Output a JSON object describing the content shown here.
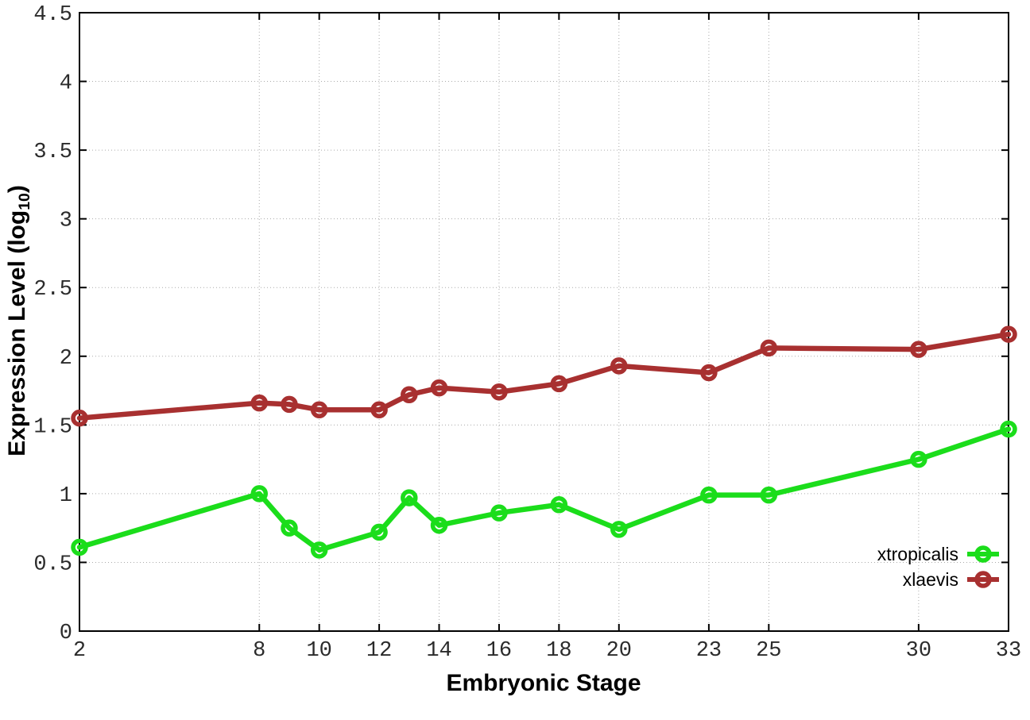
{
  "page": {
    "background_color": "#ffffff"
  },
  "chart_data": {
    "type": "line",
    "title": "",
    "xlabel": "Embryonic Stage",
    "ylabel": "Expression Level (log10)",
    "ylabel_parts": {
      "pre": "Expression Level (log",
      "sub": "10",
      "post": ")"
    },
    "xlim": [
      2,
      33
    ],
    "ylim": [
      0,
      4.5
    ],
    "xtick_values": [
      2,
      8,
      10,
      12,
      14,
      16,
      18,
      20,
      23,
      25,
      30,
      33
    ],
    "xtick_labels": [
      "2",
      "8",
      "10",
      "12",
      "14",
      "16",
      "18",
      "20",
      "23",
      "25",
      "30",
      "33"
    ],
    "ytick_values": [
      0,
      0.5,
      1,
      1.5,
      2,
      2.5,
      3,
      3.5,
      4,
      4.5
    ],
    "ytick_labels": [
      "0",
      "0.5",
      "1",
      "1.5",
      "2",
      "2.5",
      "3",
      "3.5",
      "4",
      "4.5"
    ],
    "grid": true,
    "grid_style": "dotted",
    "legend_position": "inside-bottom-right",
    "x": [
      2,
      8,
      9,
      10,
      12,
      13,
      14,
      16,
      18,
      20,
      23,
      25,
      30,
      33
    ],
    "series": [
      {
        "name": "xtropicalis",
        "color": "#1bdd1b",
        "marker": "open-circle",
        "values": [
          0.61,
          1.0,
          0.75,
          0.59,
          0.72,
          0.97,
          0.77,
          0.86,
          0.92,
          0.74,
          0.99,
          0.99,
          1.25,
          1.47
        ]
      },
      {
        "name": "xlaevis",
        "color": "#a83030",
        "marker": "open-circle",
        "values": [
          1.55,
          1.66,
          1.65,
          1.61,
          1.61,
          1.72,
          1.77,
          1.74,
          1.8,
          1.93,
          1.88,
          2.06,
          2.05,
          2.16
        ]
      }
    ],
    "axis_color": "#000000",
    "grid_color": "#aaaaaa",
    "tick_label_color": "#2b2b2b"
  }
}
